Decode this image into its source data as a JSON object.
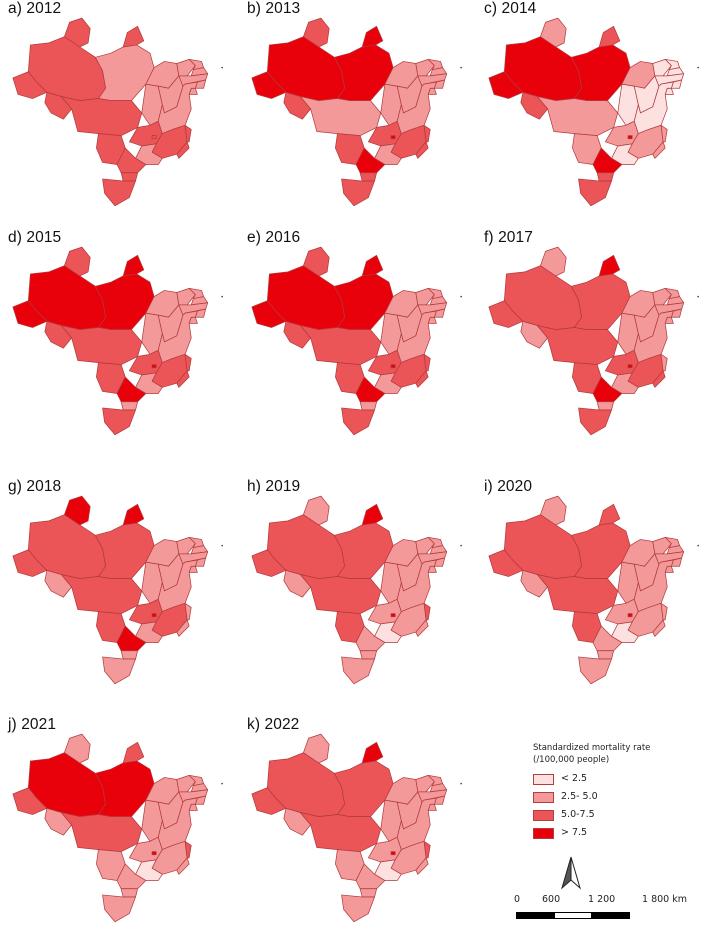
{
  "maps": [
    {
      "label": "a) 2012",
      "fills": [
        2,
        1,
        2,
        2,
        2,
        2,
        1,
        2,
        2,
        2,
        1,
        1,
        1,
        1,
        1,
        1,
        1,
        1,
        1,
        2,
        2,
        2,
        1,
        2,
        2,
        2,
        2
      ]
    },
    {
      "label": "b) 2013",
      "fills": [
        3,
        3,
        2,
        3,
        2,
        3,
        1,
        1,
        2,
        2,
        1,
        1,
        1,
        1,
        1,
        1,
        1,
        1,
        1,
        2,
        2,
        2,
        1,
        3,
        2,
        2,
        3
      ]
    },
    {
      "label": "c) 2014",
      "fills": [
        3,
        3,
        1,
        3,
        2,
        2,
        0,
        1,
        1,
        1,
        1,
        0,
        0,
        0,
        0,
        0,
        0,
        0,
        0,
        1,
        1,
        1,
        0,
        3,
        2,
        2,
        3
      ]
    },
    {
      "label": "d) 2015",
      "fills": [
        3,
        3,
        2,
        3,
        2,
        3,
        1,
        2,
        2,
        2,
        1,
        1,
        1,
        1,
        1,
        1,
        1,
        1,
        1,
        2,
        2,
        2,
        1,
        3,
        1,
        2,
        3
      ]
    },
    {
      "label": "e) 2016",
      "fills": [
        3,
        3,
        2,
        3,
        2,
        3,
        1,
        2,
        2,
        2,
        1,
        1,
        1,
        1,
        1,
        1,
        1,
        1,
        1,
        2,
        2,
        2,
        1,
        3,
        1,
        2,
        3
      ]
    },
    {
      "label": "f) 2017",
      "fills": [
        2,
        2,
        1,
        2,
        1,
        3,
        1,
        2,
        2,
        2,
        1,
        1,
        1,
        1,
        1,
        1,
        1,
        1,
        1,
        2,
        1,
        2,
        1,
        3,
        1,
        2,
        3
      ]
    },
    {
      "label": "g) 2018",
      "fills": [
        2,
        2,
        3,
        2,
        1,
        3,
        1,
        2,
        2,
        2,
        1,
        1,
        1,
        1,
        1,
        1,
        1,
        1,
        1,
        2,
        1,
        1,
        1,
        3,
        1,
        1,
        3
      ]
    },
    {
      "label": "h) 2019",
      "fills": [
        2,
        2,
        1,
        2,
        1,
        3,
        1,
        2,
        2,
        1,
        1,
        1,
        1,
        1,
        1,
        1,
        1,
        1,
        1,
        1,
        2,
        1,
        0,
        1,
        1,
        1,
        3
      ]
    },
    {
      "label": "i) 2020",
      "fills": [
        2,
        2,
        1,
        2,
        1,
        2,
        1,
        2,
        2,
        1,
        1,
        1,
        1,
        1,
        1,
        1,
        1,
        1,
        1,
        1,
        1,
        1,
        0,
        1,
        1,
        1,
        3
      ]
    },
    {
      "label": "j) 2021",
      "fills": [
        3,
        3,
        1,
        2,
        1,
        2,
        1,
        2,
        1,
        1,
        1,
        1,
        1,
        1,
        1,
        1,
        1,
        1,
        1,
        1,
        2,
        1,
        0,
        1,
        1,
        1,
        3
      ]
    },
    {
      "label": "k) 2022",
      "fills": [
        2,
        2,
        1,
        2,
        1,
        3,
        1,
        2,
        1,
        1,
        1,
        1,
        1,
        1,
        1,
        1,
        1,
        1,
        1,
        1,
        2,
        1,
        0,
        1,
        1,
        1,
        3
      ]
    }
  ],
  "legend": {
    "title_line1": "Standardized mortality rate",
    "title_line2": "(/100,000 people)",
    "items": [
      {
        "label": "< 2.5",
        "color": "#fde0e0"
      },
      {
        "label": "2.5- 5.0",
        "color": "#f4999a"
      },
      {
        "label": "5.0-7.5",
        "color": "#ec5557"
      },
      {
        "label": "> 7.5",
        "color": "#e8000b"
      }
    ]
  },
  "colors": [
    "#fde0e0",
    "#f4999a",
    "#ec5557",
    "#e8000b"
  ],
  "border_color": "#b13a3c",
  "scale": {
    "ticks": [
      "0",
      "600",
      "1 200",
      "1 800 km"
    ]
  }
}
